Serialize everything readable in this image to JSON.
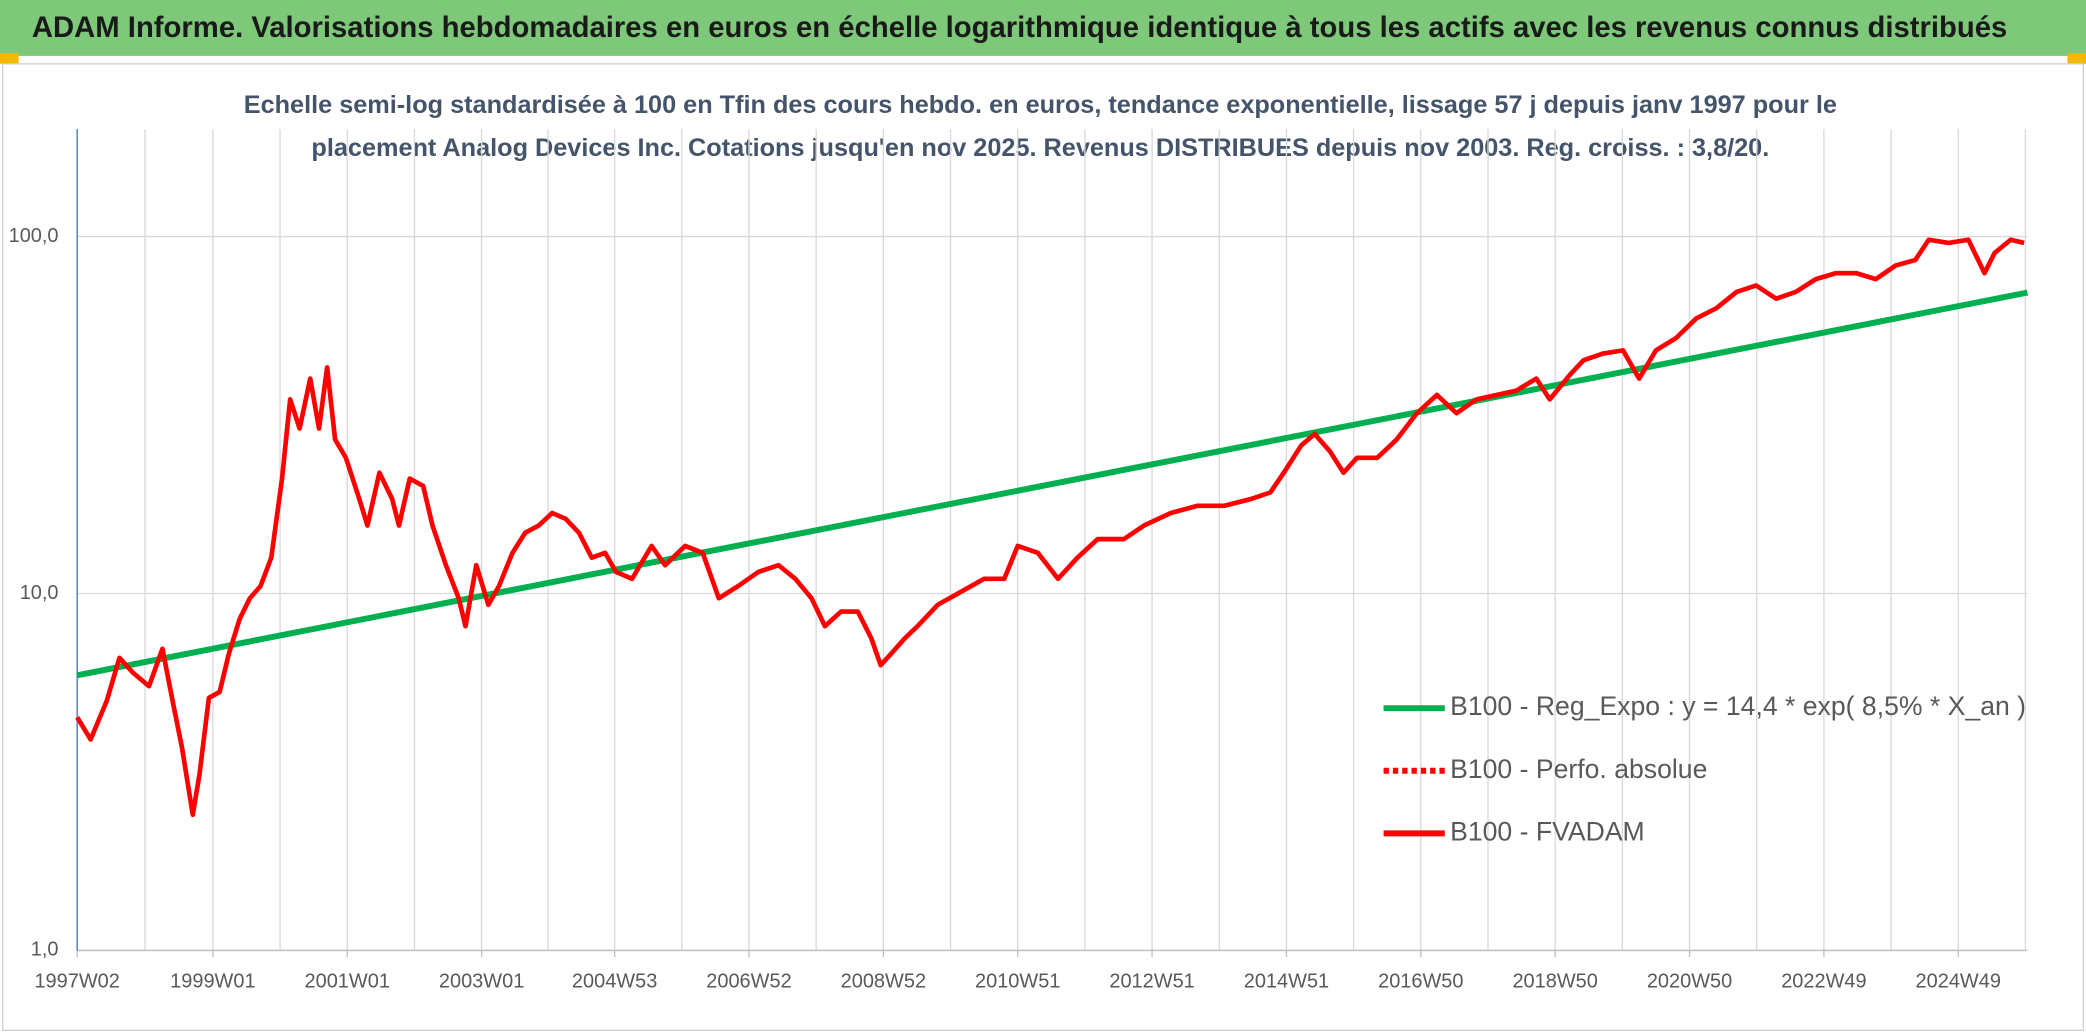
{
  "chart_data": {
    "type": "line",
    "title": "ADAM Informe. Valorisations hebdomadaires en euros en échelle logarithmique identique à tous les actifs avec les revenus connus distribués",
    "subtitle": [
      "Echelle semi-log standardisée à 100 en Tfin des cours hebdo. en euros, tendance exponentielle, lissage 57 j depuis janv 1997 pour le",
      "placement Analog Devices Inc. Cotations jusqu'en nov 2025. Revenus DISTRIBUES depuis nov 2003. Reg. croiss. : 3,8/20."
    ],
    "log_y": true,
    "grid": true,
    "legend": "right",
    "xlim": [
      1997.0,
      2026.03
    ],
    "xticks": [
      {
        "value": 1997.0,
        "label": "1997W02"
      },
      {
        "value": 1999.02,
        "label": "1999W01"
      },
      {
        "value": 2001.02,
        "label": "2001W01"
      },
      {
        "value": 2003.02,
        "label": "2003W01"
      },
      {
        "value": 2005.0,
        "label": "2004W53"
      },
      {
        "value": 2007.0,
        "label": "2006W52"
      },
      {
        "value": 2009.0,
        "label": "2008W52"
      },
      {
        "value": 2011.0,
        "label": "2010W51"
      },
      {
        "value": 2013.0,
        "label": "2012W51"
      },
      {
        "value": 2015.0,
        "label": "2014W51"
      },
      {
        "value": 2017.0,
        "label": "2016W50"
      },
      {
        "value": 2019.0,
        "label": "2018W50"
      },
      {
        "value": 2021.0,
        "label": "2020W50"
      },
      {
        "value": 2023.0,
        "label": "2022W49"
      },
      {
        "value": 2025.0,
        "label": "2024W49"
      }
    ],
    "ylim": [
      1,
      200
    ],
    "yticks": [
      {
        "value": 1,
        "label": "1,0"
      },
      {
        "value": 10,
        "label": "10,0"
      },
      {
        "value": 100,
        "label": "100,0"
      }
    ],
    "series": [
      {
        "name": "B100 - Reg_Expo : y = 14,4 * exp( 8,5% *  X_an )",
        "color": "#00b050",
        "dash": "solid",
        "x": [
          1997.0,
          2026.03
        ],
        "values": [
          5.9,
          69.7
        ]
      },
      {
        "name": "B100 - Perfo. absolue",
        "color": "#ff0000",
        "dash": "dotted",
        "x": [],
        "values": []
      },
      {
        "name": "B100 - FVADAM",
        "color": "#ff0000",
        "dash": "solid",
        "x": [
          1997.0,
          1997.2,
          1997.44,
          1997.63,
          1997.83,
          1998.07,
          1998.27,
          1998.43,
          1998.56,
          1998.72,
          1998.82,
          1998.96,
          1999.12,
          1999.26,
          1999.42,
          1999.57,
          1999.73,
          1999.89,
          2000.05,
          2000.17,
          2000.31,
          2000.47,
          2000.6,
          2000.72,
          2000.84,
          2001.0,
          2001.2,
          2001.32,
          2001.5,
          2001.69,
          2001.79,
          2001.95,
          2002.15,
          2002.29,
          2002.49,
          2002.68,
          2002.78,
          2002.94,
          2003.12,
          2003.28,
          2003.48,
          2003.67,
          2003.87,
          2004.07,
          2004.27,
          2004.47,
          2004.66,
          2004.86,
          2005.02,
          2005.26,
          2005.55,
          2005.75,
          2006.05,
          2006.31,
          2006.55,
          2006.84,
          2007.14,
          2007.44,
          2007.69,
          2007.93,
          2008.13,
          2008.37,
          2008.62,
          2008.82,
          2008.96,
          2009.12,
          2009.32,
          2009.51,
          2009.81,
          2010.11,
          2010.5,
          2010.8,
          2011.0,
          2011.3,
          2011.6,
          2011.89,
          2012.19,
          2012.58,
          2012.88,
          2013.28,
          2013.67,
          2014.07,
          2014.47,
          2014.76,
          2014.96,
          2015.22,
          2015.42,
          2015.65,
          2015.85,
          2016.05,
          2016.35,
          2016.64,
          2016.94,
          2017.24,
          2017.53,
          2017.83,
          2018.13,
          2018.42,
          2018.72,
          2018.92,
          2019.22,
          2019.42,
          2019.71,
          2020.01,
          2020.25,
          2020.5,
          2020.8,
          2021.1,
          2021.4,
          2021.7,
          2021.99,
          2022.29,
          2022.58,
          2022.88,
          2023.18,
          2023.48,
          2023.77,
          2024.07,
          2024.36,
          2024.56,
          2024.86,
          2025.15,
          2025.39,
          2025.54,
          2025.78,
          2025.98
        ],
        "values": [
          4.5,
          3.9,
          5.0,
          6.6,
          6.0,
          5.5,
          7.0,
          4.9,
          3.7,
          2.4,
          3.1,
          5.1,
          5.3,
          6.8,
          8.5,
          9.7,
          10.5,
          12.6,
          21,
          35,
          29,
          40,
          29,
          43,
          27,
          24,
          18.4,
          15.5,
          21.8,
          18.4,
          15.5,
          21,
          20,
          15.5,
          12,
          9.7,
          8.1,
          12,
          9.3,
          10.5,
          13,
          14.8,
          15.5,
          16.8,
          16.2,
          14.8,
          12.6,
          13,
          11.5,
          11,
          13.6,
          12,
          13.6,
          13,
          9.7,
          10.5,
          11.5,
          12,
          11,
          9.7,
          8.1,
          8.9,
          8.9,
          7.5,
          6.3,
          6.8,
          7.5,
          8.1,
          9.3,
          10,
          11,
          11,
          13.6,
          13,
          11,
          12.6,
          14.2,
          14.2,
          15.5,
          16.8,
          17.6,
          17.6,
          18.4,
          19.2,
          21.8,
          26,
          28,
          25,
          21.8,
          24,
          24,
          27,
          32,
          36,
          32,
          35,
          36,
          37,
          40,
          35,
          41,
          45,
          47,
          48,
          40,
          48,
          52,
          59,
          63,
          70,
          73,
          67,
          70,
          76,
          79,
          79,
          76,
          83,
          86,
          98,
          96,
          98,
          79,
          90,
          98,
          96
        ]
      }
    ]
  }
}
